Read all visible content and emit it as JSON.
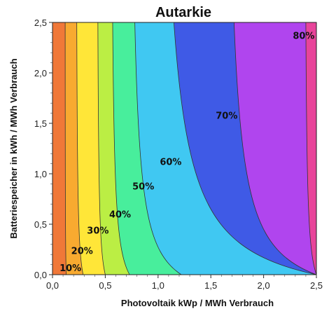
{
  "chart_data": {
    "type": "contour",
    "title": "Autarkie",
    "xlabel": "Photovoltaik kWp / MWh Verbrauch",
    "ylabel": "Batteriespeicher in kWh / MWh Verbrauch",
    "xlim": [
      0,
      2.5
    ],
    "ylim": [
      0,
      2.5
    ],
    "x_ticks": [
      "0,0",
      "0,5",
      "1,0",
      "1,5",
      "2,0",
      "2,5"
    ],
    "y_ticks": [
      "0,0",
      "0,5",
      "1,0",
      "1,5",
      "2,0",
      "2,5"
    ],
    "grid": false,
    "levels": [
      {
        "label": "10%",
        "color": "#f07838",
        "x_at_y0": 0.13,
        "x_at_ymax": 0.12,
        "label_x": 0.17,
        "label_y": 0.07
      },
      {
        "label": "20%",
        "color": "#f8aa30",
        "x_at_y0": 0.29,
        "x_at_ymax": 0.23,
        "label_x": 0.28,
        "label_y": 0.24
      },
      {
        "label": "30%",
        "color": "#ffe638",
        "x_at_y0": 0.5,
        "x_at_ymax": 0.43,
        "label_x": 0.43,
        "label_y": 0.44
      },
      {
        "label": "40%",
        "color": "#bbee44",
        "x_at_y0": 0.73,
        "x_at_ymax": 0.57,
        "label_x": 0.64,
        "label_y": 0.6
      },
      {
        "label": "50%",
        "color": "#48ee9c",
        "x_at_y0": 1.22,
        "x_at_ymax": 0.78,
        "label_x": 0.86,
        "label_y": 0.88
      },
      {
        "label": "60%",
        "color": "#40c8f2",
        "x_at_y0": 2.5,
        "x_at_ymax": 1.15,
        "label_x": 1.12,
        "label_y": 1.12
      },
      {
        "label": "70%",
        "color": "#3f5ae6",
        "x_at_y0": 2.5,
        "x_at_ymax": 1.72,
        "label_x": 1.65,
        "label_y": 1.58
      },
      {
        "label": "80%",
        "color": "#b045ee",
        "x_at_y0": 2.5,
        "x_at_ymax": 2.4,
        "label_x": 2.38,
        "label_y": 2.37
      }
    ],
    "top_band_color": "#e8449a"
  }
}
